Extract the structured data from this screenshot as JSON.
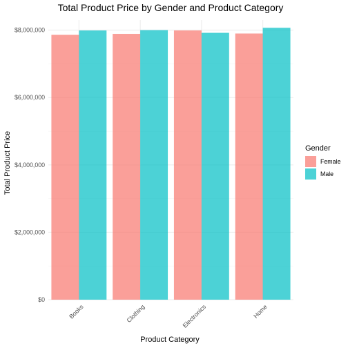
{
  "chart_data": {
    "type": "bar",
    "title": "Total Product Price by Gender and Product Category",
    "xlabel": "Product Category",
    "ylabel": "Total Product Price",
    "categories": [
      "Books",
      "Clothing",
      "Electronics",
      "Home"
    ],
    "series": [
      {
        "name": "Female",
        "color": "#F8766D",
        "values": [
          7860000,
          7890000,
          7990000,
          7900000
        ]
      },
      {
        "name": "Male",
        "color": "#00BFC4",
        "values": [
          7990000,
          8000000,
          7920000,
          8070000
        ]
      }
    ],
    "ylim": [
      0,
      8300000
    ],
    "y_ticks": [
      0,
      2000000,
      4000000,
      6000000,
      8000000
    ],
    "y_tick_labels": [
      "$0",
      "$2,000,000",
      "$4,000,000",
      "$6,000,000",
      "$8,000,000"
    ],
    "grid": true,
    "legend": {
      "title": "Gender",
      "position": "right"
    }
  }
}
